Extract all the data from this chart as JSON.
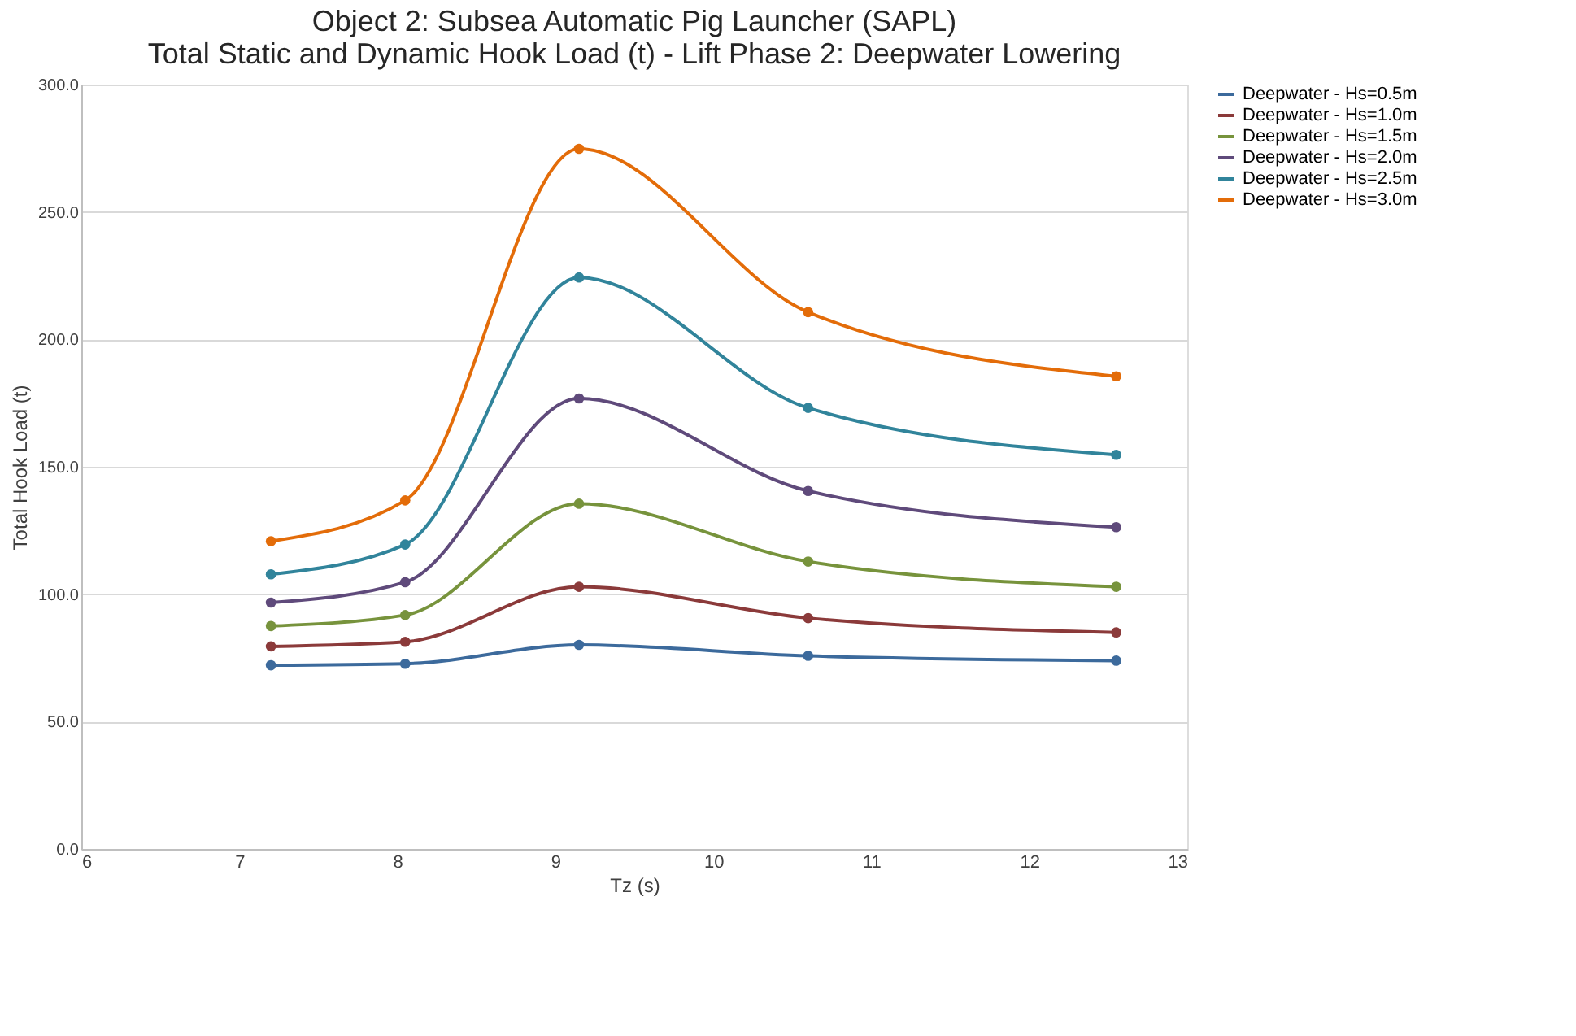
{
  "chart_data": {
    "type": "line",
    "title": [
      "Object 2: Subsea Automatic Pig Launcher (SAPL)",
      "Total Static and Dynamic Hook Load (t) - Lift Phase 2: Deepwater Lowering"
    ],
    "xlabel": "Tz (s)",
    "ylabel": "Total Hook Load (t)",
    "x": [
      7.2,
      8.05,
      9.15,
      10.6,
      12.55
    ],
    "series": [
      {
        "name": "Deepwater - Hs=0.5m",
        "color": "#3c6a9c",
        "values": [
          72.1,
          72.7,
          80.1,
          75.8,
          73.9
        ]
      },
      {
        "name": "Deepwater - Hs=1.0m",
        "color": "#8b3a3a",
        "values": [
          79.5,
          81.3,
          102.9,
          90.6,
          85.0
        ]
      },
      {
        "name": "Deepwater - Hs=1.5m",
        "color": "#77933c",
        "values": [
          87.5,
          91.8,
          135.5,
          112.8,
          102.9
        ]
      },
      {
        "name": "Deepwater - Hs=2.0m",
        "color": "#5f4a7b",
        "values": [
          96.7,
          104.7,
          176.8,
          140.5,
          126.3
        ]
      },
      {
        "name": "Deepwater - Hs=2.5m",
        "color": "#31849b",
        "values": [
          107.8,
          119.5,
          224.3,
          173.1,
          154.7
        ]
      },
      {
        "name": "Deepwater - Hs=3.0m",
        "color": "#e36c09",
        "values": [
          120.8,
          136.8,
          274.8,
          210.7,
          185.5
        ]
      }
    ],
    "xlim": [
      6,
      13
    ],
    "xticks": [
      6,
      7,
      8,
      9,
      10,
      11,
      12,
      13
    ],
    "ylim": [
      0,
      300
    ],
    "yticks": [
      {
        "value": 0,
        "label": "0.0"
      },
      {
        "value": 50,
        "label": "50.0"
      },
      {
        "value": 100,
        "label": "100.0"
      },
      {
        "value": 150,
        "label": "150.0"
      },
      {
        "value": 200,
        "label": "200.0"
      },
      {
        "value": 250,
        "label": "250.0"
      },
      {
        "value": 300,
        "label": "300.0"
      }
    ],
    "grid": "y",
    "legend": "right",
    "marker": "circle",
    "line_style": "solid"
  }
}
